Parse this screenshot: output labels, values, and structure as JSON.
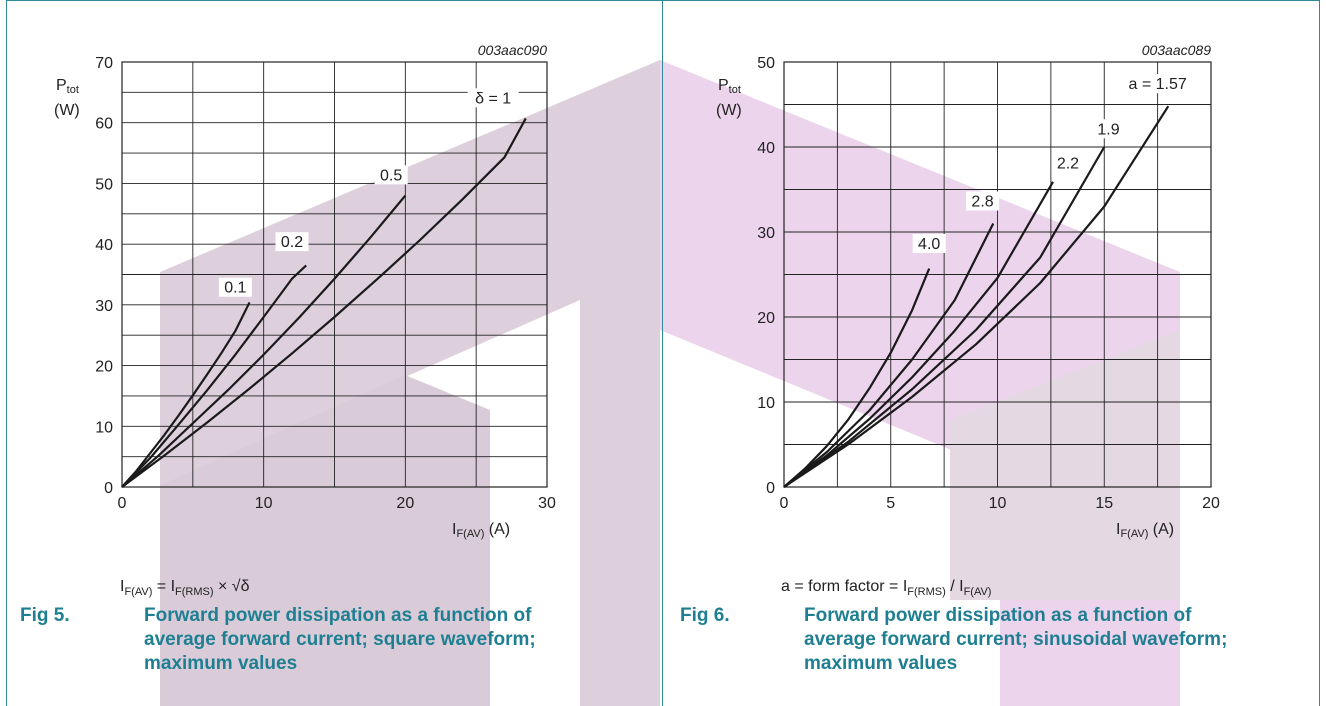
{
  "figures": [
    {
      "fig_number": "Fig 5.",
      "caption": "Forward power dissipation as a function of average forward current; square waveform; maximum values",
      "note_parts": {
        "lhs": "I",
        "lhs_sub": "F(AV)",
        "mid": " = I",
        "mid_sub": "F(RMS)",
        "rhs": " × √δ"
      }
    },
    {
      "fig_number": "Fig 6.",
      "caption": "Forward power dissipation as a function of average forward current; sinusoidal waveform; maximum values",
      "note_parts": {
        "lhs": "a = form factor = I",
        "lhs_sub": "F(RMS)",
        "mid": " / I",
        "mid_sub": "F(AV)",
        "rhs": ""
      }
    }
  ],
  "chart_data": [
    {
      "type": "line",
      "code": "003aac090",
      "ylabel_main": "P",
      "ylabel_sub": "tot",
      "yunit": "(W)",
      "xlabel_main": "I",
      "xlabel_sub": "F(AV)",
      "xunit": " (A)",
      "xlim": [
        0,
        30
      ],
      "ylim": [
        0,
        70
      ],
      "xticks": [
        0,
        10,
        20,
        30
      ],
      "yticks": [
        0,
        10,
        20,
        30,
        40,
        50,
        60,
        70
      ],
      "grid": true,
      "grid_x_step": 5,
      "grid_y_step": 5,
      "curve_param": "δ",
      "series": [
        {
          "name": "0.1",
          "x": [
            0,
            1,
            2,
            3,
            4,
            5,
            6,
            7,
            8,
            9
          ],
          "y": [
            0,
            2.6,
            5.6,
            8.6,
            11.8,
            15.1,
            18.5,
            22.0,
            25.7,
            30.4
          ]
        },
        {
          "name": "0.2",
          "x": [
            0,
            2,
            4,
            6,
            8,
            10,
            12,
            13
          ],
          "y": [
            0,
            4.8,
            10.3,
            15.9,
            21.8,
            28.0,
            34.3,
            36.5
          ]
        },
        {
          "name": "0.5",
          "x": [
            0,
            2.5,
            5,
            7.5,
            10,
            12.5,
            15,
            17.5,
            20
          ],
          "y": [
            0,
            5.0,
            10.5,
            16.0,
            21.8,
            27.9,
            34.3,
            41.0,
            48.0
          ]
        },
        {
          "name": "δ = 1",
          "x": [
            0,
            3,
            6,
            9,
            12,
            15,
            18,
            21,
            24,
            27,
            28.5
          ],
          "y": [
            0,
            5.2,
            10.6,
            16.2,
            22.0,
            28.0,
            34.2,
            40.6,
            47.3,
            54.3,
            60.7
          ]
        }
      ],
      "curve_labels": [
        {
          "text": "0.1",
          "x": 8.0,
          "y": 32.0
        },
        {
          "text": "0.2",
          "x": 12.0,
          "y": 39.5
        },
        {
          "text": "0.5",
          "x": 19.0,
          "y": 50.5
        },
        {
          "text": "δ = 1",
          "x": 26.2,
          "y": 63.2
        }
      ]
    },
    {
      "type": "line",
      "code": "003aac089",
      "ylabel_main": "P",
      "ylabel_sub": "tot",
      "yunit": "(W)",
      "xlabel_main": "I",
      "xlabel_sub": "F(AV)",
      "xunit": " (A)",
      "xlim": [
        0,
        20
      ],
      "ylim": [
        0,
        50
      ],
      "xticks": [
        0,
        5,
        10,
        15,
        20
      ],
      "yticks": [
        0,
        10,
        20,
        30,
        40,
        50
      ],
      "grid": true,
      "grid_x_step": 2.5,
      "grid_y_step": 5,
      "curve_param": "a",
      "series": [
        {
          "name": "4.0",
          "x": [
            0,
            1,
            2,
            3,
            4,
            5,
            6,
            6.8
          ],
          "y": [
            0,
            2.2,
            4.8,
            7.9,
            11.6,
            15.8,
            20.8,
            25.7
          ]
        },
        {
          "name": "2.8",
          "x": [
            0,
            2,
            4,
            6,
            8,
            9.8
          ],
          "y": [
            0,
            4.1,
            9.0,
            15.0,
            22.0,
            31.0
          ]
        },
        {
          "name": "2.2",
          "x": [
            0,
            2,
            4,
            6,
            8,
            10,
            12.6
          ],
          "y": [
            0,
            3.7,
            8.0,
            12.9,
            18.4,
            24.6,
            35.9
          ]
        },
        {
          "name": "1.9",
          "x": [
            0,
            3,
            6,
            9,
            12,
            15
          ],
          "y": [
            0,
            5.3,
            11.5,
            18.5,
            27.0,
            40.0
          ]
        },
        {
          "name": "a = 1.57",
          "x": [
            0,
            3,
            6,
            9,
            12,
            15,
            18
          ],
          "y": [
            0,
            5.0,
            10.6,
            16.8,
            24.0,
            33.0,
            44.8
          ]
        }
      ],
      "curve_labels": [
        {
          "text": "4.0",
          "x": 6.8,
          "y": 28.0
        },
        {
          "text": "2.8",
          "x": 9.3,
          "y": 33.0
        },
        {
          "text": "2.2",
          "x": 13.3,
          "y": 37.5
        },
        {
          "text": "1.9",
          "x": 15.2,
          "y": 41.5
        },
        {
          "text": "a = 1.57",
          "x": 17.5,
          "y": 46.8
        }
      ]
    }
  ]
}
